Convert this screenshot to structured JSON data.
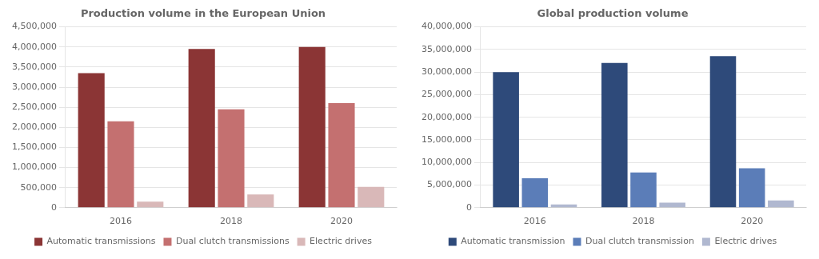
{
  "chart_data": [
    {
      "type": "bar",
      "title": "Production volume in the European Union",
      "categories": [
        "2016",
        "2018",
        "2020"
      ],
      "series": [
        {
          "name": "Automatic transmissions",
          "color": "#8B3535",
          "values": [
            3350000,
            3950000,
            4000000
          ]
        },
        {
          "name": "Dual clutch transmissions",
          "color": "#C47070",
          "values": [
            2150000,
            2450000,
            2600000
          ]
        },
        {
          "name": "Electric drives",
          "color": "#D9B8B8",
          "values": [
            150000,
            330000,
            520000
          ]
        }
      ],
      "ylim": [
        0,
        4500000
      ],
      "yticks": [
        0,
        {
          "value": 500000,
          "label": "500,000"
        },
        {
          "value": 1000000,
          "label": "1,000,000"
        },
        {
          "value": 1500000,
          "label": "1,500,000"
        },
        {
          "value": 2000000,
          "label": "2,000,000"
        },
        {
          "value": 2500000,
          "label": "2,500,000"
        },
        {
          "value": 3000000,
          "label": "3,000,000"
        },
        {
          "value": 3500000,
          "label": "3,500,000"
        },
        {
          "value": 4000000,
          "label": "4,000,000"
        },
        {
          "value": 4500000,
          "label": "4,500,000"
        }
      ],
      "grid": true,
      "legend": "bottom"
    },
    {
      "type": "bar",
      "title": "Global production volume",
      "categories": [
        "2016",
        "2018",
        "2020"
      ],
      "series": [
        {
          "name": "Automatic transmission",
          "color": "#2E4A7A",
          "values": [
            30000000,
            32000000,
            33500000
          ]
        },
        {
          "name": "Dual clutch transmission",
          "color": "#5B7DB8",
          "values": [
            6500000,
            7800000,
            8700000
          ]
        },
        {
          "name": "Electric drives",
          "color": "#B0B8D0",
          "values": [
            700000,
            1100000,
            1600000
          ]
        }
      ],
      "ylim": [
        0,
        40000000
      ],
      "yticks": [
        0,
        {
          "value": 5000000,
          "label": "5,000,000"
        },
        {
          "value": 10000000,
          "label": "10,000,000"
        },
        {
          "value": 15000000,
          "label": "15,000,000"
        },
        {
          "value": 20000000,
          "label": "20,000,000"
        },
        {
          "value": 25000000,
          "label": "25,000,000"
        },
        {
          "value": 30000000,
          "label": "30,000,000"
        },
        {
          "value": 35000000,
          "label": "35,000,000"
        },
        {
          "value": 40000000,
          "label": "40,000,000"
        }
      ],
      "grid": true,
      "legend": "bottom"
    }
  ]
}
